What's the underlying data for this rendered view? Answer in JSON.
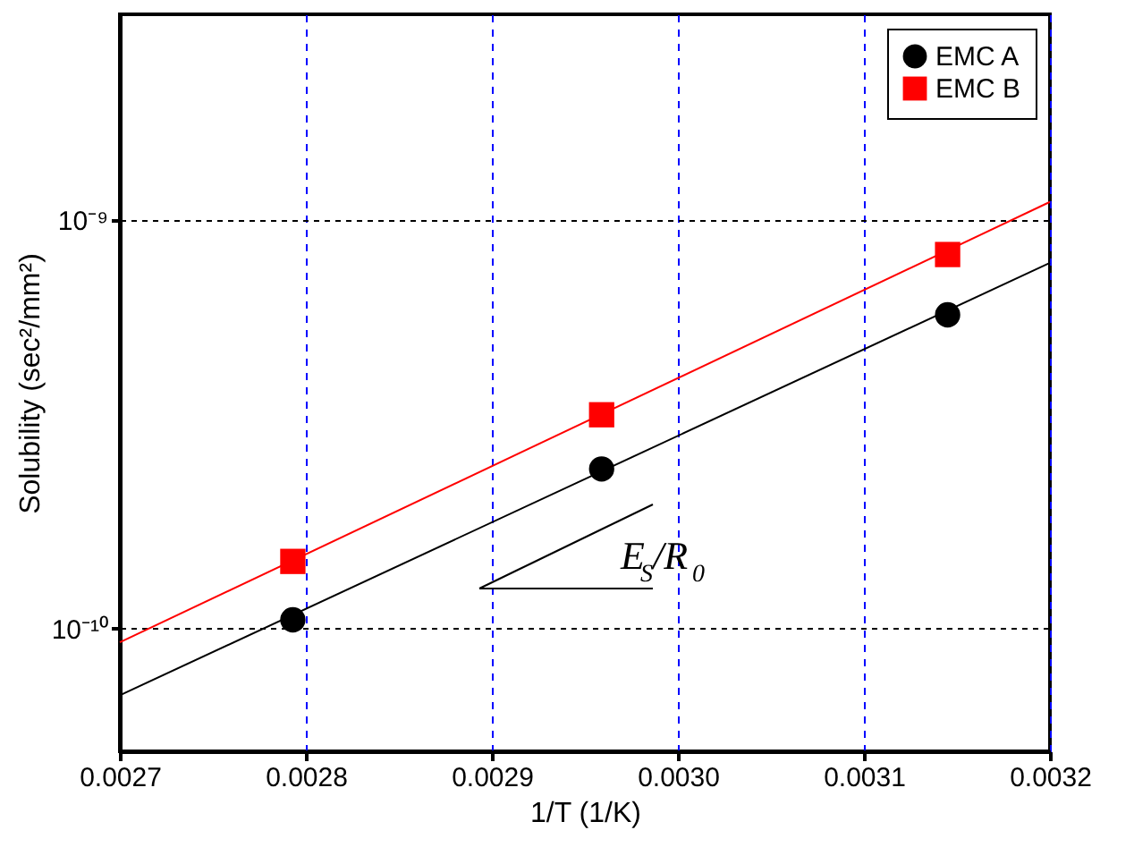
{
  "chart_data": {
    "type": "scatter",
    "xlabel": "1/T (1/K)",
    "ylabel": "Solubility (sec²/mm²)",
    "xlim": [
      0.0027,
      0.0032
    ],
    "xticks": [
      {
        "value": 0.0027,
        "label": "0.0027"
      },
      {
        "value": 0.0028,
        "label": "0.0028"
      },
      {
        "value": 0.0029,
        "label": "0.0029"
      },
      {
        "value": 0.003,
        "label": "0.0030"
      },
      {
        "value": 0.0031,
        "label": "0.0031"
      },
      {
        "value": 0.0032,
        "label": "0.0032"
      }
    ],
    "ylim": [
      5e-11,
      3.2e-09
    ],
    "yticks": [
      {
        "value": 1e-10,
        "label": "10⁻¹⁰"
      },
      {
        "value": 1e-09,
        "label": "10⁻⁹"
      }
    ],
    "log": "y",
    "grid": true,
    "legend": "top right",
    "annotations": [
      "E$_{S}$/R$_{0}$"
    ],
    "series": [
      {
        "name": "EMC A",
        "color": "#000000",
        "marker": "circle",
        "x": [
          0.002793,
          0.002959,
          0.003145
        ],
        "values": [
          1.05e-10,
          2.46e-10,
          5.87e-10
        ]
      },
      {
        "name": "EMC B",
        "color": "#ff0000",
        "marker": "square",
        "x": [
          0.002793,
          0.002959,
          0.003145
        ],
        "values": [
          1.46e-10,
          3.34e-10,
          8.25e-10
        ]
      },
      {
        "type": "line",
        "color": "#000000",
        "x": [
          0.0027,
          0.0032
        ],
        "values": [
          6.86e-11,
          7.87e-10
        ]
      },
      {
        "type": "line",
        "color": "#ff0000",
        "x": [
          0.0027,
          0.0032
        ],
        "values": [
          9.25e-11,
          1.11e-09
        ]
      }
    ]
  }
}
